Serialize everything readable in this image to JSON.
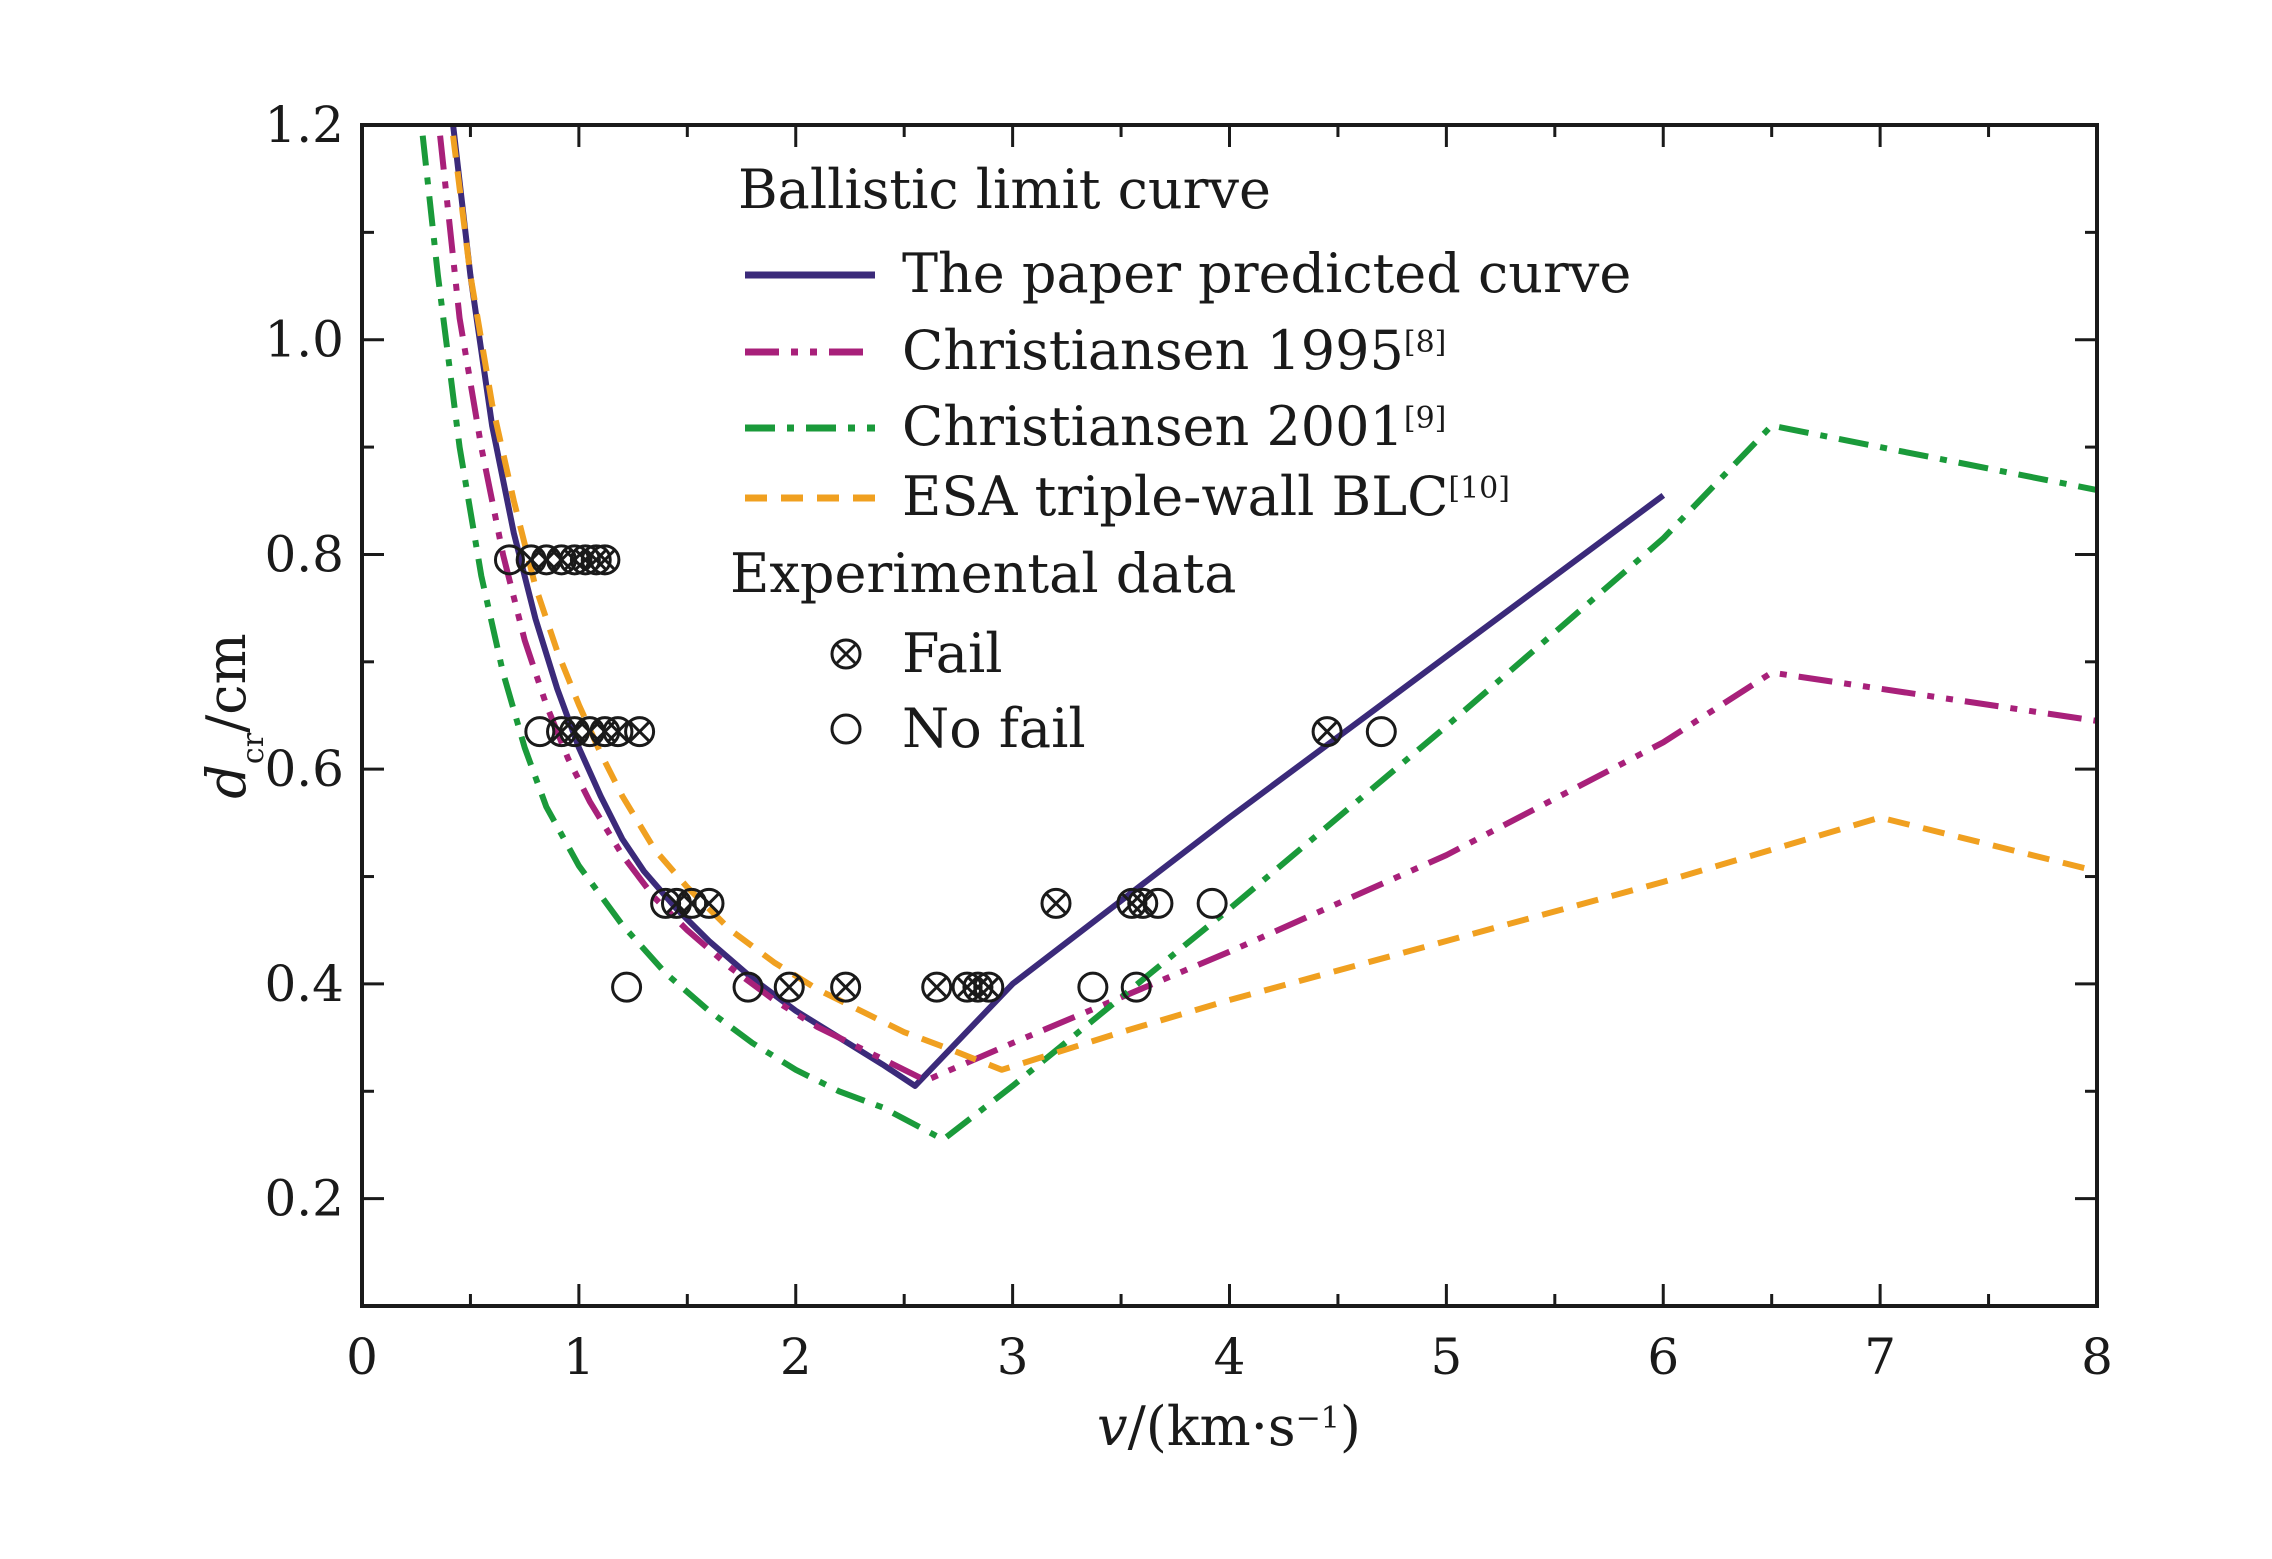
{
  "chart_data": {
    "type": "line",
    "title": "",
    "xlabel": {
      "var": "v",
      "rest": "/(km·s",
      "sup": "−1",
      "close": ")"
    },
    "ylabel": {
      "var": "d",
      "sub": "cr",
      "rest": "/cm"
    },
    "xlim": [
      0,
      8
    ],
    "ylim": [
      0.1,
      1.2
    ],
    "xticks": [
      0,
      1,
      2,
      3,
      4,
      5,
      6,
      7,
      8
    ],
    "yticks": [
      0.2,
      0.4,
      0.6,
      0.8,
      1.0,
      1.2
    ],
    "ytick_labels": [
      "0.2",
      "0.4",
      "0.6",
      "0.8",
      "1.0",
      "1.2"
    ],
    "legend": {
      "position": "upper-center",
      "section1_title": "Ballistic limit curve",
      "section2_title": "Experimental data"
    },
    "series": [
      {
        "name": "The paper predicted curve",
        "ref": "",
        "color": "#3b2a7a",
        "style": "solid",
        "x": [
          0.42,
          0.5,
          0.6,
          0.7,
          0.8,
          0.9,
          1.0,
          1.1,
          1.2,
          1.3,
          1.45,
          1.6,
          1.8,
          2.0,
          2.2,
          2.4,
          2.55,
          3.0,
          4.0,
          5.0,
          6.0
        ],
        "y": [
          1.2,
          1.06,
          0.92,
          0.82,
          0.74,
          0.675,
          0.62,
          0.575,
          0.535,
          0.505,
          0.47,
          0.44,
          0.405,
          0.375,
          0.35,
          0.325,
          0.305,
          0.4,
          0.555,
          0.705,
          0.855
        ]
      },
      {
        "name": "Christiansen 1995",
        "ref": "[8]",
        "color": "#a8207a",
        "style": "dash-dot-dot",
        "x": [
          0.36,
          0.45,
          0.55,
          0.65,
          0.75,
          0.85,
          0.95,
          1.05,
          1.2,
          1.35,
          1.5,
          1.7,
          1.9,
          2.1,
          2.3,
          2.5,
          2.6,
          3.0,
          4.0,
          5.0,
          6.0,
          6.5,
          7.0,
          8.0
        ],
        "y": [
          1.19,
          1.02,
          0.9,
          0.8,
          0.72,
          0.66,
          0.61,
          0.57,
          0.52,
          0.48,
          0.45,
          0.415,
          0.385,
          0.36,
          0.34,
          0.32,
          0.31,
          0.345,
          0.43,
          0.52,
          0.625,
          0.69,
          0.675,
          0.645
        ]
      },
      {
        "name": "Christiansen 2001",
        "ref": "[9]",
        "color": "#1a9a3a",
        "style": "dash-dot",
        "x": [
          0.28,
          0.35,
          0.45,
          0.55,
          0.65,
          0.75,
          0.85,
          1.0,
          1.2,
          1.4,
          1.6,
          1.8,
          2.0,
          2.2,
          2.4,
          2.68,
          3.0,
          4.0,
          5.0,
          6.0,
          6.5,
          7.0,
          8.0
        ],
        "y": [
          1.19,
          1.06,
          0.9,
          0.78,
          0.69,
          0.62,
          0.565,
          0.51,
          0.455,
          0.41,
          0.375,
          0.345,
          0.32,
          0.3,
          0.285,
          0.255,
          0.305,
          0.47,
          0.64,
          0.815,
          0.92,
          0.9,
          0.86
        ]
      },
      {
        "name": "ESA triple-wall BLC",
        "ref": "[10]",
        "color": "#f0a020",
        "style": "dashed",
        "x": [
          0.42,
          0.5,
          0.6,
          0.7,
          0.8,
          0.9,
          1.0,
          1.1,
          1.2,
          1.35,
          1.5,
          1.7,
          1.9,
          2.1,
          2.3,
          2.5,
          2.7,
          2.95,
          3.5,
          4.0,
          5.0,
          6.0,
          7.0,
          8.0
        ],
        "y": [
          1.19,
          1.06,
          0.94,
          0.85,
          0.77,
          0.71,
          0.66,
          0.615,
          0.575,
          0.525,
          0.49,
          0.45,
          0.42,
          0.395,
          0.375,
          0.355,
          0.34,
          0.32,
          0.355,
          0.385,
          0.44,
          0.495,
          0.555,
          0.505
        ]
      }
    ],
    "experimental": {
      "fail_label": "Fail",
      "nofail_label": "No fail",
      "fail": [
        [
          0.78,
          0.795
        ],
        [
          0.85,
          0.795
        ],
        [
          0.92,
          0.795
        ],
        [
          0.98,
          0.795
        ],
        [
          1.03,
          0.795
        ],
        [
          1.08,
          0.795
        ],
        [
          1.12,
          0.795
        ],
        [
          0.92,
          0.635
        ],
        [
          0.98,
          0.635
        ],
        [
          1.05,
          0.635
        ],
        [
          1.12,
          0.635
        ],
        [
          1.18,
          0.635
        ],
        [
          1.28,
          0.635
        ],
        [
          1.45,
          0.475
        ],
        [
          1.52,
          0.475
        ],
        [
          1.6,
          0.475
        ],
        [
          1.97,
          0.397
        ],
        [
          2.23,
          0.397
        ],
        [
          2.65,
          0.397
        ],
        [
          2.79,
          0.397
        ],
        [
          2.84,
          0.397
        ],
        [
          2.89,
          0.397
        ],
        [
          3.2,
          0.475
        ],
        [
          3.55,
          0.475
        ],
        [
          3.6,
          0.475
        ],
        [
          4.45,
          0.635
        ]
      ],
      "nofail": [
        [
          0.68,
          0.795
        ],
        [
          0.82,
          0.635
        ],
        [
          1.22,
          0.397
        ],
        [
          1.4,
          0.475
        ],
        [
          1.78,
          0.397
        ],
        [
          3.37,
          0.397
        ],
        [
          3.57,
          0.397
        ],
        [
          3.67,
          0.475
        ],
        [
          3.92,
          0.475
        ],
        [
          4.7,
          0.635
        ]
      ]
    }
  }
}
